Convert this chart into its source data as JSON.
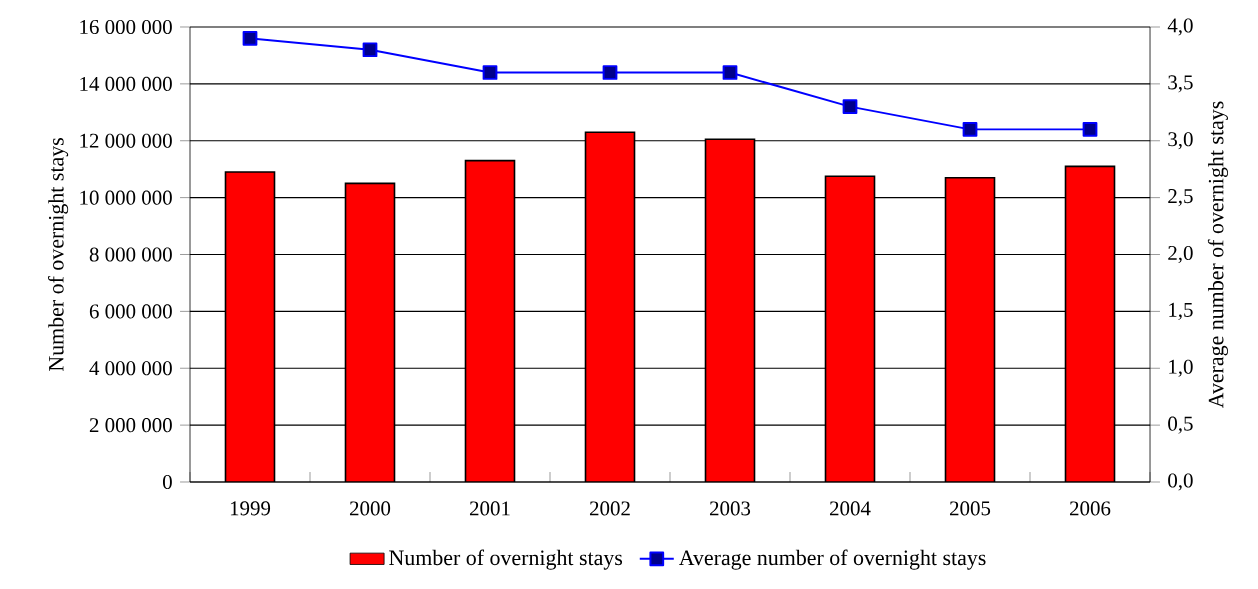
{
  "chart_data": {
    "type": "bar",
    "categories": [
      "1999",
      "2000",
      "2001",
      "2002",
      "2003",
      "2004",
      "2005",
      "2006"
    ],
    "series": [
      {
        "name": "Number of overnight stays",
        "color": "#ff0000",
        "values": [
          10900000,
          10500000,
          11300000,
          12300000,
          12050000,
          10750000,
          10700000,
          11100000
        ]
      },
      {
        "name": "Average number of overnight stays",
        "type": "line",
        "axis": "y2",
        "marker": "square",
        "color": "#0000ff",
        "values": [
          3.9,
          3.8,
          3.6,
          3.6,
          3.6,
          3.3,
          3.1,
          3.1
        ]
      }
    ],
    "ylabel": "Number of overnight stays",
    "y2label": "Average number of overnight stays",
    "ylim": [
      0,
      16000000
    ],
    "yticks": [
      0,
      {
        "value": 2000000,
        "label": "2 000 000"
      },
      {
        "value": 4000000,
        "label": "4 000 000"
      },
      {
        "value": 6000000,
        "label": "6 000 000"
      },
      {
        "value": 8000000,
        "label": "8 000 000"
      },
      {
        "value": 10000000,
        "label": "10 000 000"
      },
      {
        "value": 12000000,
        "label": "12 000 000"
      },
      {
        "value": 14000000,
        "label": "14 000 000"
      },
      {
        "value": 16000000,
        "label": "16 000 000"
      }
    ],
    "y2lim": [
      0,
      4
    ],
    "y2ticks": [
      {
        "value": 0,
        "label": "0,0"
      },
      {
        "value": 0.5,
        "label": "0,5"
      },
      {
        "value": 1,
        "label": "1,0"
      },
      {
        "value": 1.5,
        "label": "1,5"
      },
      {
        "value": 2,
        "label": "2,0"
      },
      {
        "value": 2.5,
        "label": "2,5"
      },
      {
        "value": 3,
        "label": "3,0"
      },
      {
        "value": 3.5,
        "label": "3,5"
      },
      {
        "value": 4,
        "label": "4,0"
      }
    ],
    "grid": "y",
    "legend": "bottom"
  }
}
